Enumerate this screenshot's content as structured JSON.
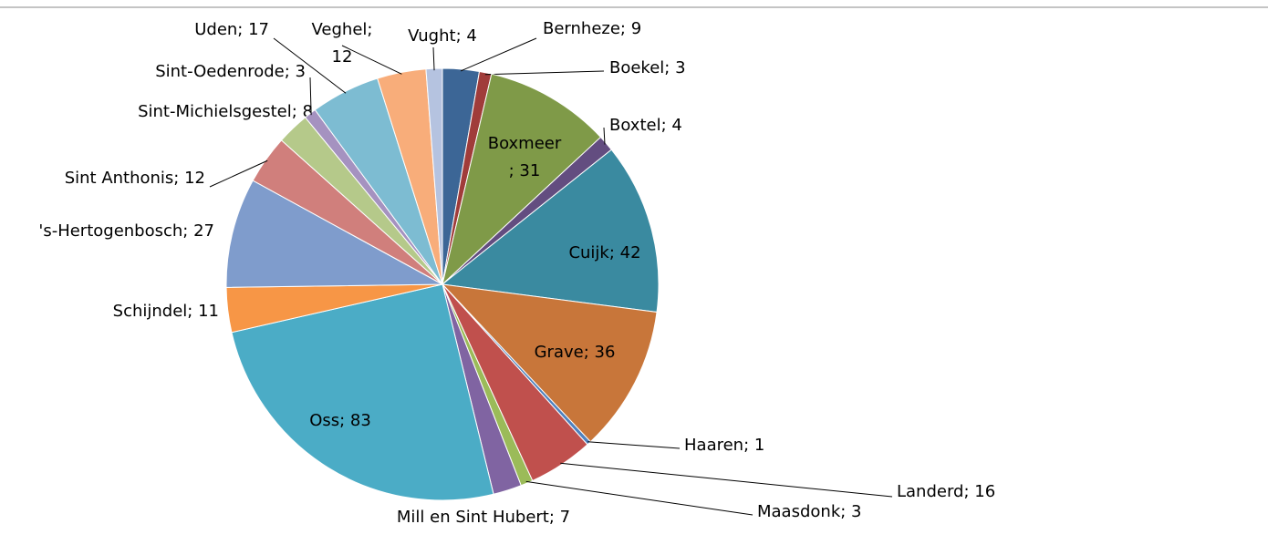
{
  "chart_data": {
    "type": "pie",
    "labels": [
      "Bernheze; 9",
      "Boekel; 3",
      "Boxmeer; 31",
      "Boxtel; 4",
      "Cuijk; 42",
      "Grave; 36",
      "Haaren; 1",
      "Landerd; 16",
      "Maasdonk; 3",
      "Mill en Sint Hubert; 7",
      "Oss; 83",
      "Schijndel; 11",
      "'s-Hertogenbosch; 27",
      "Sint Anthonis; 12",
      "Sint-Michielsgestel; 8",
      "Sint-Oedenrode; 3",
      "Uden; 17",
      "Veghel; 12",
      "Vught; 4"
    ],
    "values": [
      9,
      3,
      31,
      4,
      42,
      36,
      1,
      16,
      3,
      7,
      83,
      11,
      27,
      12,
      8,
      3,
      17,
      12,
      4
    ],
    "colors": [
      "#3c6696",
      "#a03c3a",
      "#7f9a48",
      "#634d80",
      "#3a8aa0",
      "#c8763a",
      "#4f81bd",
      "#c0504d",
      "#9bbb59",
      "#8064a2",
      "#4bacc6",
      "#f79646",
      "#7f9ccc",
      "#d07f7c",
      "#b5c98a",
      "#a592c0",
      "#7dbcd2",
      "#f8ad7a",
      "#b5c3e0"
    ]
  }
}
